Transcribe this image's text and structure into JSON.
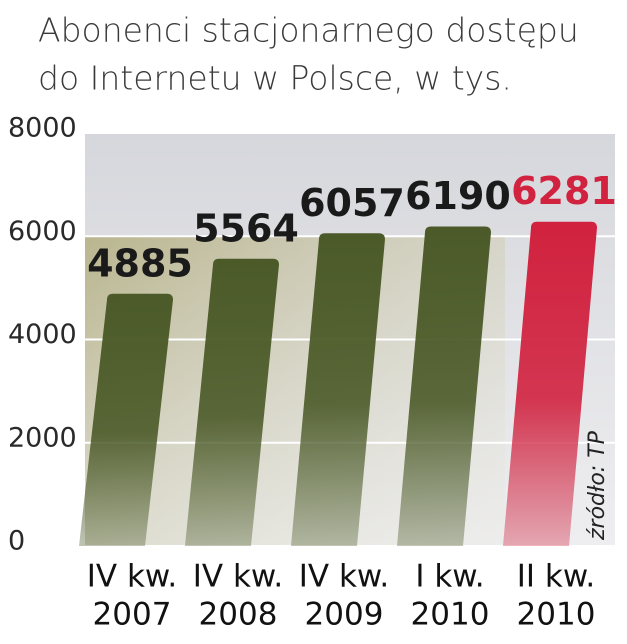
{
  "chart_data": {
    "type": "bar",
    "title_lines": [
      "Abonenci stacjonarnego dostępu",
      "do Internetu w Polsce, w tys."
    ],
    "categories": [
      [
        "IV kw.",
        "2007"
      ],
      [
        "IV kw.",
        "2008"
      ],
      [
        "IV kw.",
        "2009"
      ],
      [
        "I kw.",
        "2010"
      ],
      [
        "II kw.",
        "2010"
      ]
    ],
    "values": [
      4885,
      5564,
      6057,
      6190,
      6281
    ],
    "colors": [
      "#4b5a28",
      "#4b5a28",
      "#4b5a28",
      "#4b5a28",
      "#d1223f"
    ],
    "value_label_colors": [
      "#1a1a1a",
      "#1a1a1a",
      "#1a1a1a",
      "#1a1a1a",
      "#d1223f"
    ],
    "ylim": [
      0,
      8000
    ],
    "yticks": [
      0,
      2000,
      4000,
      6000,
      8000
    ],
    "grid": true,
    "source": "źródło: TP"
  }
}
